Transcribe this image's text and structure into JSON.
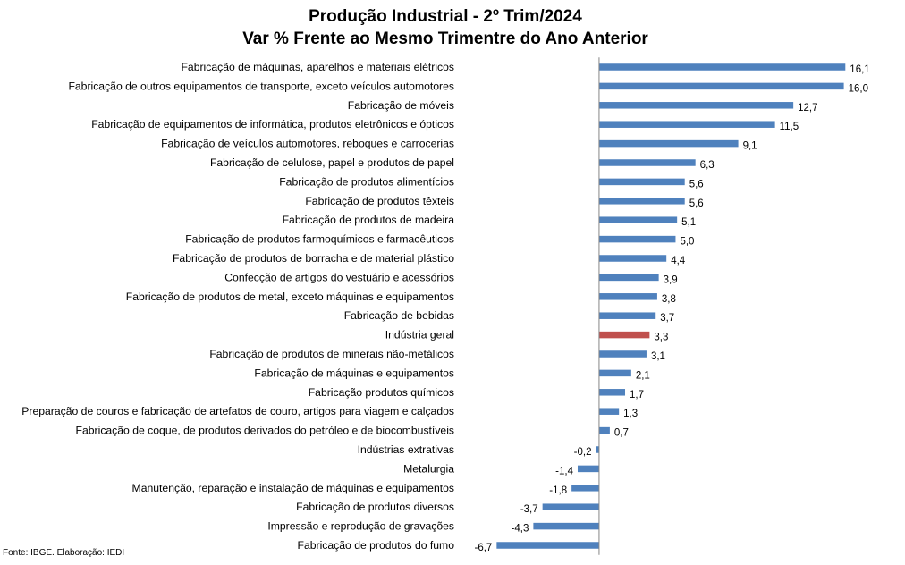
{
  "chart_data": {
    "type": "bar",
    "orientation": "horizontal",
    "title": "Produção Industrial - 2º Trim/2024",
    "subtitle": "Var % Frente ao Mesmo Trimentre do Ano Anterior",
    "xlabel": "",
    "ylabel": "",
    "xlim": [
      -9,
      20
    ],
    "grid": false,
    "legend": "none",
    "bar_color": "#4f81bd",
    "highlight_color": "#c0504d",
    "highlight_category": "Indústria geral",
    "categories": [
      "Fabricação de máquinas, aparelhos e materiais elétricos",
      "Fabricação de outros equipamentos de transporte, exceto veículos automotores",
      "Fabricação de móveis",
      "Fabricação de equipamentos de informática, produtos eletrônicos e ópticos",
      "Fabricação de veículos automotores, reboques e carrocerias",
      "Fabricação de celulose, papel e produtos de papel",
      "Fabricação de produtos alimentícios",
      "Fabricação de produtos têxteis",
      "Fabricação de produtos de madeira",
      "Fabricação de produtos farmoquímicos e farmacêuticos",
      "Fabricação de produtos de borracha e de material plástico",
      "Confecção de artigos do vestuário e acessórios",
      "Fabricação de produtos de metal, exceto máquinas e equipamentos",
      "Fabricação de bebidas",
      "Indústria geral",
      "Fabricação de produtos de minerais não-metálicos",
      "Fabricação de máquinas e equipamentos",
      "Fabricação produtos químicos",
      "Preparação de couros e fabricação de artefatos de couro, artigos para viagem e calçados",
      "Fabricação de coque, de produtos derivados do petróleo e de biocombustíveis",
      "Indústrias extrativas",
      "Metalurgia",
      "Manutenção, reparação e instalação de máquinas e equipamentos",
      "Fabricação de produtos diversos",
      "Impressão e reprodução de gravações",
      "Fabricação de produtos do fumo"
    ],
    "values": [
      16.1,
      16.0,
      12.7,
      11.5,
      9.1,
      6.3,
      5.6,
      5.6,
      5.1,
      5.0,
      4.4,
      3.9,
      3.8,
      3.7,
      3.3,
      3.1,
      2.1,
      1.7,
      1.3,
      0.7,
      -0.2,
      -1.4,
      -1.8,
      -3.7,
      -4.3,
      -6.7
    ],
    "value_labels": [
      "16,1",
      "16,0",
      "12,7",
      "11,5",
      "9,1",
      "6,3",
      "5,6",
      "5,6",
      "5,1",
      "5,0",
      "4,4",
      "3,9",
      "3,8",
      "3,7",
      "3,3",
      "3,1",
      "2,1",
      "1,7",
      "1,3",
      "0,7",
      "-0,2",
      "-1,4",
      "-1,8",
      "-3,7",
      "-4,3",
      "-6,7"
    ]
  },
  "source": "Fonte: IBGE. Elaboração: IEDI"
}
